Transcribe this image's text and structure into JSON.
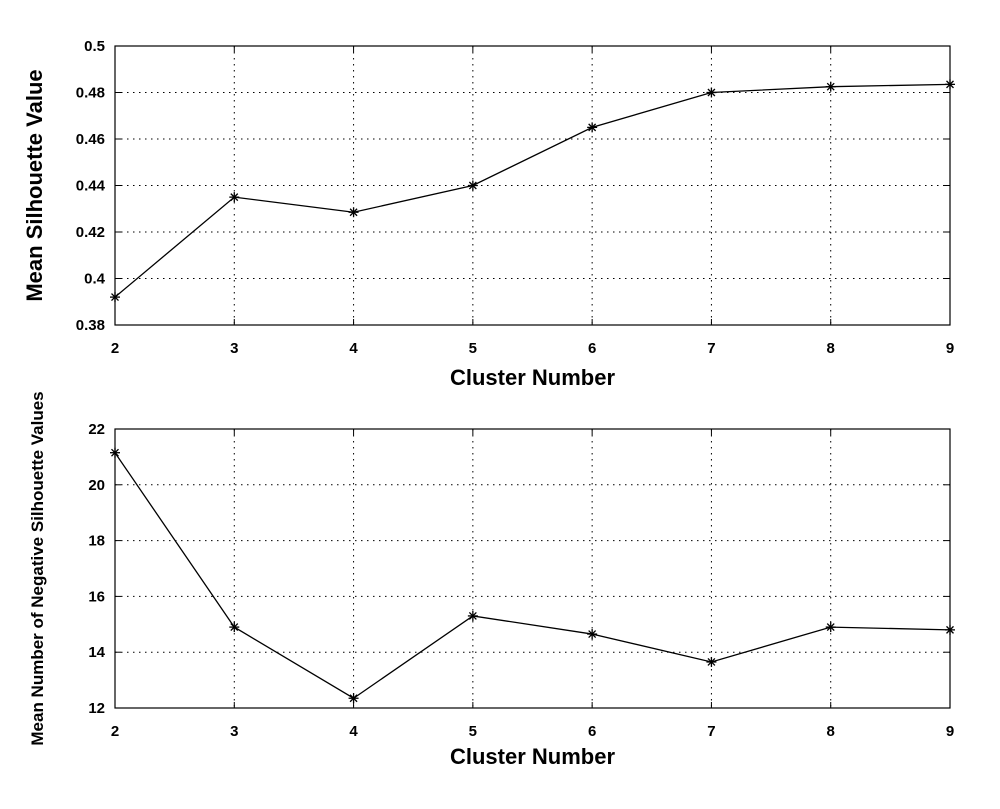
{
  "chart_data": [
    {
      "type": "line",
      "xlabel": "Cluster Number",
      "ylabel": "Mean Silhouette Value",
      "xlim": [
        2,
        9
      ],
      "ylim": [
        0.38,
        0.5
      ],
      "xticks": [
        "2",
        "3",
        "4",
        "5",
        "6",
        "7",
        "8",
        "9"
      ],
      "yticks": [
        "0.38",
        "0.4",
        "0.42",
        "0.44",
        "0.46",
        "0.48",
        "0.5"
      ],
      "grid": true,
      "marker": "asterisk",
      "series": [
        {
          "x": [
            2,
            3,
            4,
            5,
            6,
            7,
            8,
            9
          ],
          "values": [
            0.392,
            0.435,
            0.4285,
            0.44,
            0.465,
            0.48,
            0.4825,
            0.4835
          ]
        }
      ]
    },
    {
      "type": "line",
      "xlabel": "Cluster Number",
      "ylabel": "Mean Number of Negative Silhouette Values",
      "xlim": [
        2,
        9
      ],
      "ylim": [
        12,
        22
      ],
      "xticks": [
        "2",
        "3",
        "4",
        "5",
        "6",
        "7",
        "8",
        "9"
      ],
      "yticks": [
        "12",
        "14",
        "16",
        "18",
        "20",
        "22"
      ],
      "grid": true,
      "marker": "asterisk",
      "series": [
        {
          "x": [
            2,
            3,
            4,
            5,
            6,
            7,
            8,
            9
          ],
          "values": [
            21.15,
            14.9,
            12.35,
            15.3,
            14.65,
            13.65,
            14.9,
            14.8
          ]
        }
      ]
    }
  ]
}
